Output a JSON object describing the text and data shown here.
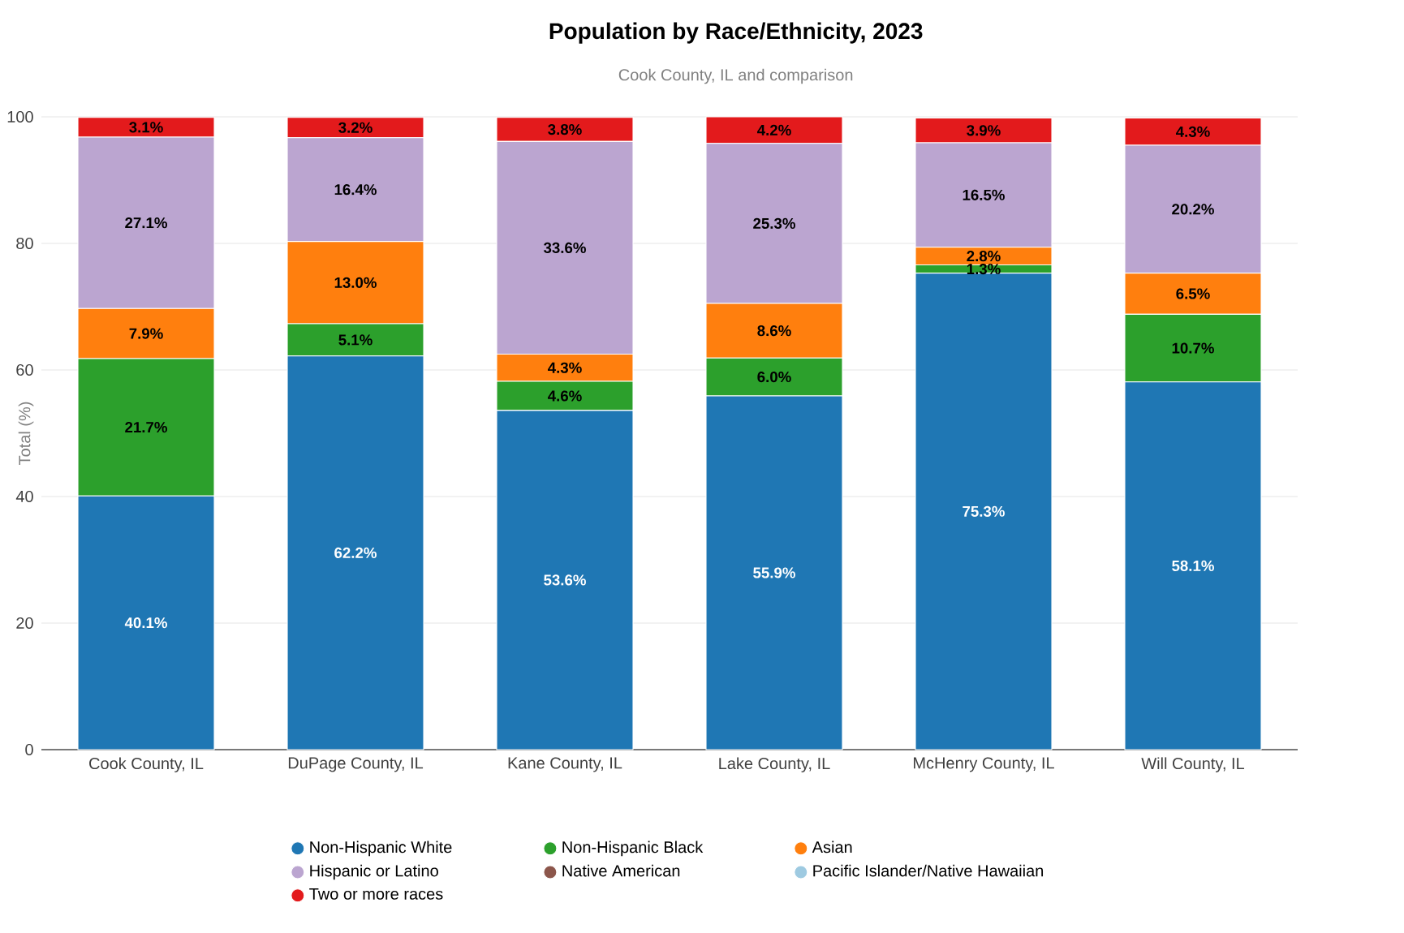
{
  "chart_data": {
    "type": "bar",
    "stacked": true,
    "title": "Population by Race/Ethnicity, 2023",
    "subtitle": "Cook County, IL and comparison",
    "ylabel": "Total (%)",
    "categories": [
      "Cook County, IL",
      "DuPage County, IL",
      "Kane County, IL",
      "Lake County, IL",
      "McHenry County, IL",
      "Will County, IL"
    ],
    "ylim": [
      0,
      100
    ],
    "yticks": [
      0,
      20,
      40,
      60,
      80,
      100
    ],
    "grid": "y",
    "legend": "bottom",
    "series": [
      {
        "name": "Non-Hispanic White",
        "color": "#1f77b4",
        "values": [
          40.1,
          62.2,
          53.6,
          55.9,
          75.3,
          58.1
        ],
        "value_labels": [
          "40.1%",
          "62.2%",
          "53.6%",
          "55.9%",
          "75.3%",
          "58.1%"
        ]
      },
      {
        "name": "Non-Hispanic Black",
        "color": "#2ca02c",
        "values": [
          21.7,
          5.1,
          4.6,
          6.0,
          1.3,
          10.7
        ],
        "value_labels": [
          "21.7%",
          "5.1%",
          "4.6%",
          "6.0%",
          "1.3%",
          "10.7%"
        ]
      },
      {
        "name": "Asian",
        "color": "#ff7f0e",
        "values": [
          7.9,
          13.0,
          4.3,
          8.6,
          2.8,
          6.5
        ],
        "value_labels": [
          "7.9%",
          "13.0%",
          "4.3%",
          "8.6%",
          "2.8%",
          "6.5%"
        ]
      },
      {
        "name": "Hispanic or Latino",
        "color": "#bba5d0",
        "values": [
          27.1,
          16.4,
          33.6,
          25.3,
          16.5,
          20.2
        ],
        "value_labels": [
          "27.1%",
          "16.4%",
          "33.6%",
          "25.3%",
          "16.5%",
          "20.2%"
        ]
      },
      {
        "name": "Native American",
        "color": "#8c564b",
        "values": [
          null,
          null,
          null,
          null,
          null,
          null
        ],
        "value_labels": [
          null,
          null,
          null,
          null,
          null,
          null
        ]
      },
      {
        "name": "Pacific Islander/Native Hawaiian",
        "color": "#9ecae1",
        "values": [
          0.0,
          0.0,
          0.0,
          0.0,
          0.0,
          0.0
        ],
        "value_labels": [
          null,
          null,
          null,
          null,
          null,
          null
        ]
      },
      {
        "name": "Two or more races",
        "color": "#e31a1c",
        "values": [
          3.1,
          3.2,
          3.8,
          4.2,
          3.9,
          4.3
        ],
        "value_labels": [
          "3.1%",
          "3.2%",
          "3.8%",
          "4.2%",
          "3.9%",
          "4.3%"
        ]
      }
    ]
  }
}
